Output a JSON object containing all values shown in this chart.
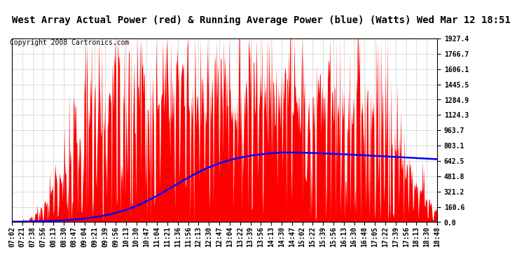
{
  "title": "West Array Actual Power (red) & Running Average Power (blue) (Watts) Wed Mar 12 18:51",
  "copyright": "Copyright 2008 Cartronics.com",
  "bg_color": "#ffffff",
  "plot_bg_color": "#ffffff",
  "grid_color": "#aaaaaa",
  "y_min": 0.0,
  "y_max": 1927.4,
  "y_ticks": [
    0.0,
    160.6,
    321.2,
    481.8,
    642.5,
    803.1,
    963.7,
    1124.3,
    1284.9,
    1445.5,
    1606.1,
    1766.7,
    1927.4
  ],
  "x_labels": [
    "07:02",
    "07:21",
    "07:38",
    "07:56",
    "08:13",
    "08:30",
    "08:47",
    "09:04",
    "09:21",
    "09:39",
    "09:56",
    "10:13",
    "10:30",
    "10:47",
    "11:04",
    "11:21",
    "11:36",
    "11:56",
    "12:13",
    "12:30",
    "12:47",
    "13:04",
    "13:22",
    "13:39",
    "13:56",
    "14:13",
    "14:30",
    "14:47",
    "15:02",
    "15:22",
    "15:39",
    "15:56",
    "16:13",
    "16:30",
    "16:48",
    "17:05",
    "17:22",
    "17:39",
    "17:56",
    "18:13",
    "18:30",
    "18:48"
  ],
  "actual_color": "#ff0000",
  "average_color": "#0000ff",
  "title_fontsize": 10,
  "copyright_fontsize": 7,
  "tick_fontsize": 7,
  "title_bg": "#d0d0d0"
}
